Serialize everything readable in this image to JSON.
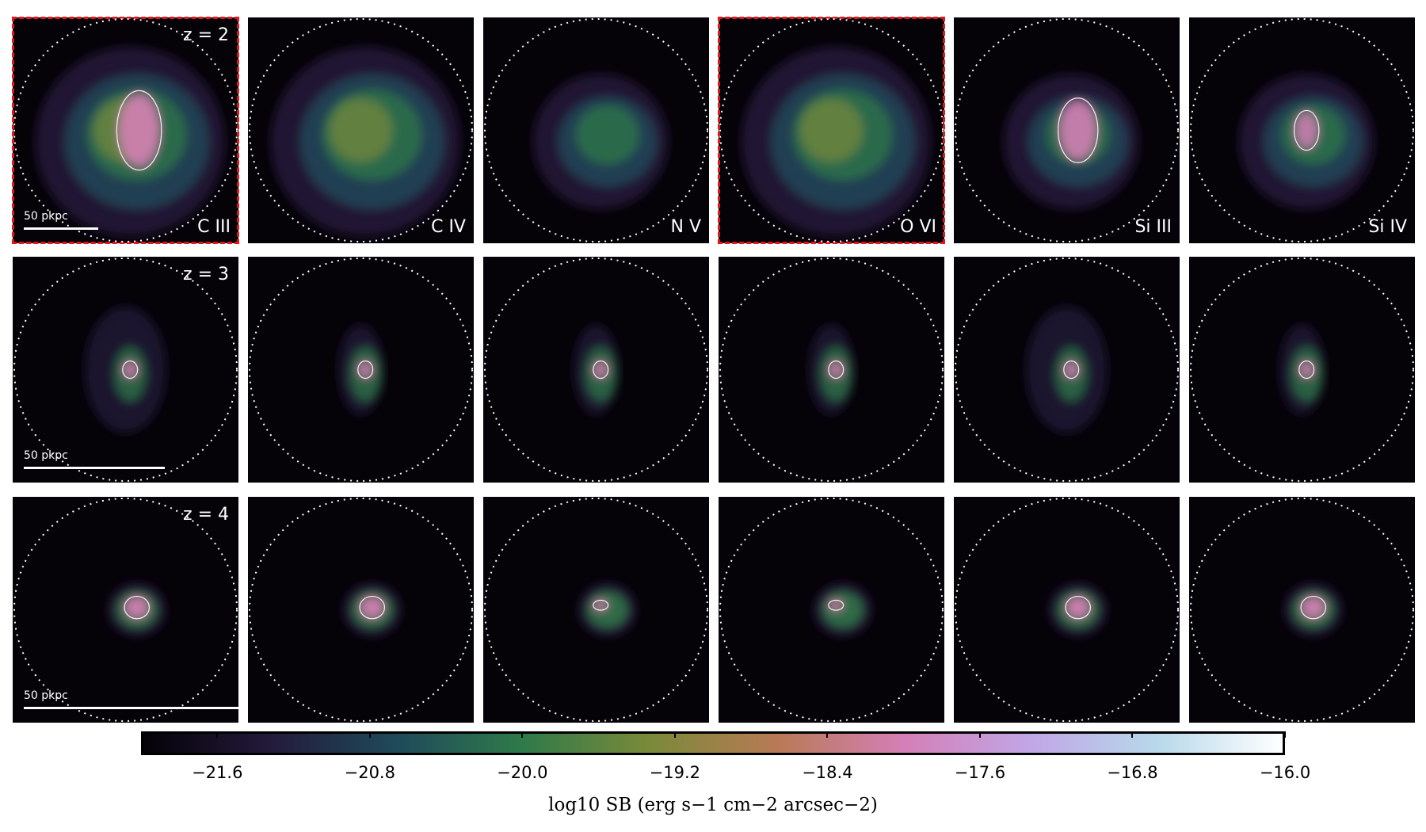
{
  "chart_data": {
    "type": "heatmap",
    "ions": [
      "C III",
      "C IV",
      "N V",
      "O VI",
      "Si III",
      "Si IV"
    ],
    "redshifts": [
      "z = 2",
      "z = 3",
      "z = 4"
    ],
    "scale_bar_label": "50 pkpc",
    "highlighted_panels": [
      "C III z = 2",
      "O VI z = 2"
    ],
    "colorbar": {
      "label": "log10 SB (erg s−1 cm−2 arcsec−2)",
      "ticks": [
        "−21.6",
        "−20.8",
        "−20.0",
        "−19.2",
        "−18.4",
        "−17.6",
        "−16.8",
        "−16.0"
      ],
      "tick_values": [
        -21.6,
        -20.8,
        -20.0,
        -19.2,
        -18.4,
        -17.6,
        -16.8,
        -16.0
      ],
      "range": [
        -22.0,
        -16.0
      ],
      "colormap": [
        "#050208",
        "#231a3a",
        "#1f4a5a",
        "#2f7a4a",
        "#7a8a3a",
        "#b87a55",
        "#d47fb5",
        "#c1a6e6",
        "#b8d8ea",
        "#ffffff"
      ]
    },
    "contour_color": "#f2f2f2",
    "virial_circle_color": "#ffffff"
  }
}
